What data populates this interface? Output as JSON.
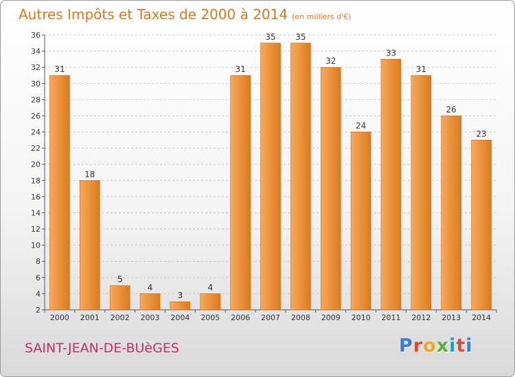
{
  "header": {
    "title": "Autres Impôts et Taxes de 2000 à 2014",
    "unit": "(en milliers d'€)"
  },
  "footer": {
    "commune": "SAINT-JEAN-DE-BUèGES",
    "logo": "Proxiti"
  },
  "colors": {
    "title": "#e07818",
    "commune": "#c0306a",
    "bar_light": "#f6a95a",
    "bar_dark": "#dd7a1e",
    "logo": [
      "#3a7bd5",
      "#e8442e",
      "#f2a322",
      "#55b33b",
      "#1a9ad6",
      "#e8442e",
      "#3a7bd5"
    ]
  },
  "chart_data": {
    "type": "bar",
    "title": "Autres Impôts et Taxes de 2000 à 2014",
    "subtitle": "(en milliers d'€)",
    "categories": [
      "2000",
      "2001",
      "2002",
      "2003",
      "2004",
      "2005",
      "2006",
      "2007",
      "2008",
      "2009",
      "2010",
      "2011",
      "2012",
      "2013",
      "2014"
    ],
    "values": [
      31,
      18,
      5,
      4,
      3,
      4,
      31,
      35,
      35,
      32,
      24,
      33,
      31,
      26,
      23
    ],
    "ylim": [
      2,
      36
    ],
    "yticks": [
      2,
      4,
      6,
      8,
      10,
      12,
      14,
      16,
      18,
      20,
      22,
      24,
      26,
      28,
      30,
      32,
      34,
      36
    ],
    "grid": true,
    "data_labels": true
  }
}
